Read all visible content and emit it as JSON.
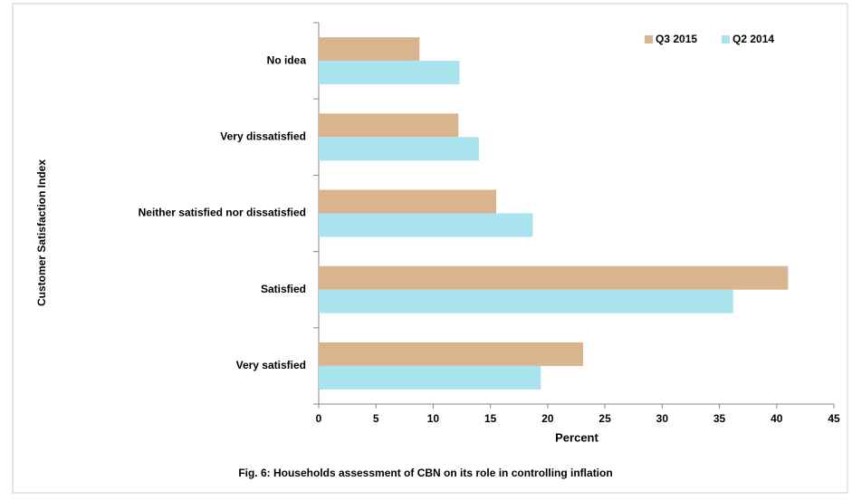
{
  "chart_data": {
    "type": "barh",
    "caption": "Fig. 6:  Households  assessment  of  CBN  on its role in  controlling inflation",
    "xlabel": "Percent",
    "ylabel": "Customer  Satisfaction Index",
    "categories": [
      "No idea",
      "Very dissatisfied",
      "Neither satisfied nor dissatisfied",
      "Satisfied",
      "Very satisfied"
    ],
    "series": [
      {
        "name": "Q3 2015",
        "color": "#d9b48e",
        "values": [
          8.8,
          12.2,
          15.5,
          41,
          23.1
        ]
      },
      {
        "name": "Q2 2014",
        "color": "#a9e3ee",
        "values": [
          12.3,
          14,
          18.7,
          36.2,
          19.4
        ]
      }
    ],
    "xlim": [
      0,
      45
    ],
    "xticks": [
      0,
      5,
      10,
      15,
      20,
      25,
      30,
      35,
      40,
      45
    ],
    "grid": false,
    "legend": "top-right"
  }
}
